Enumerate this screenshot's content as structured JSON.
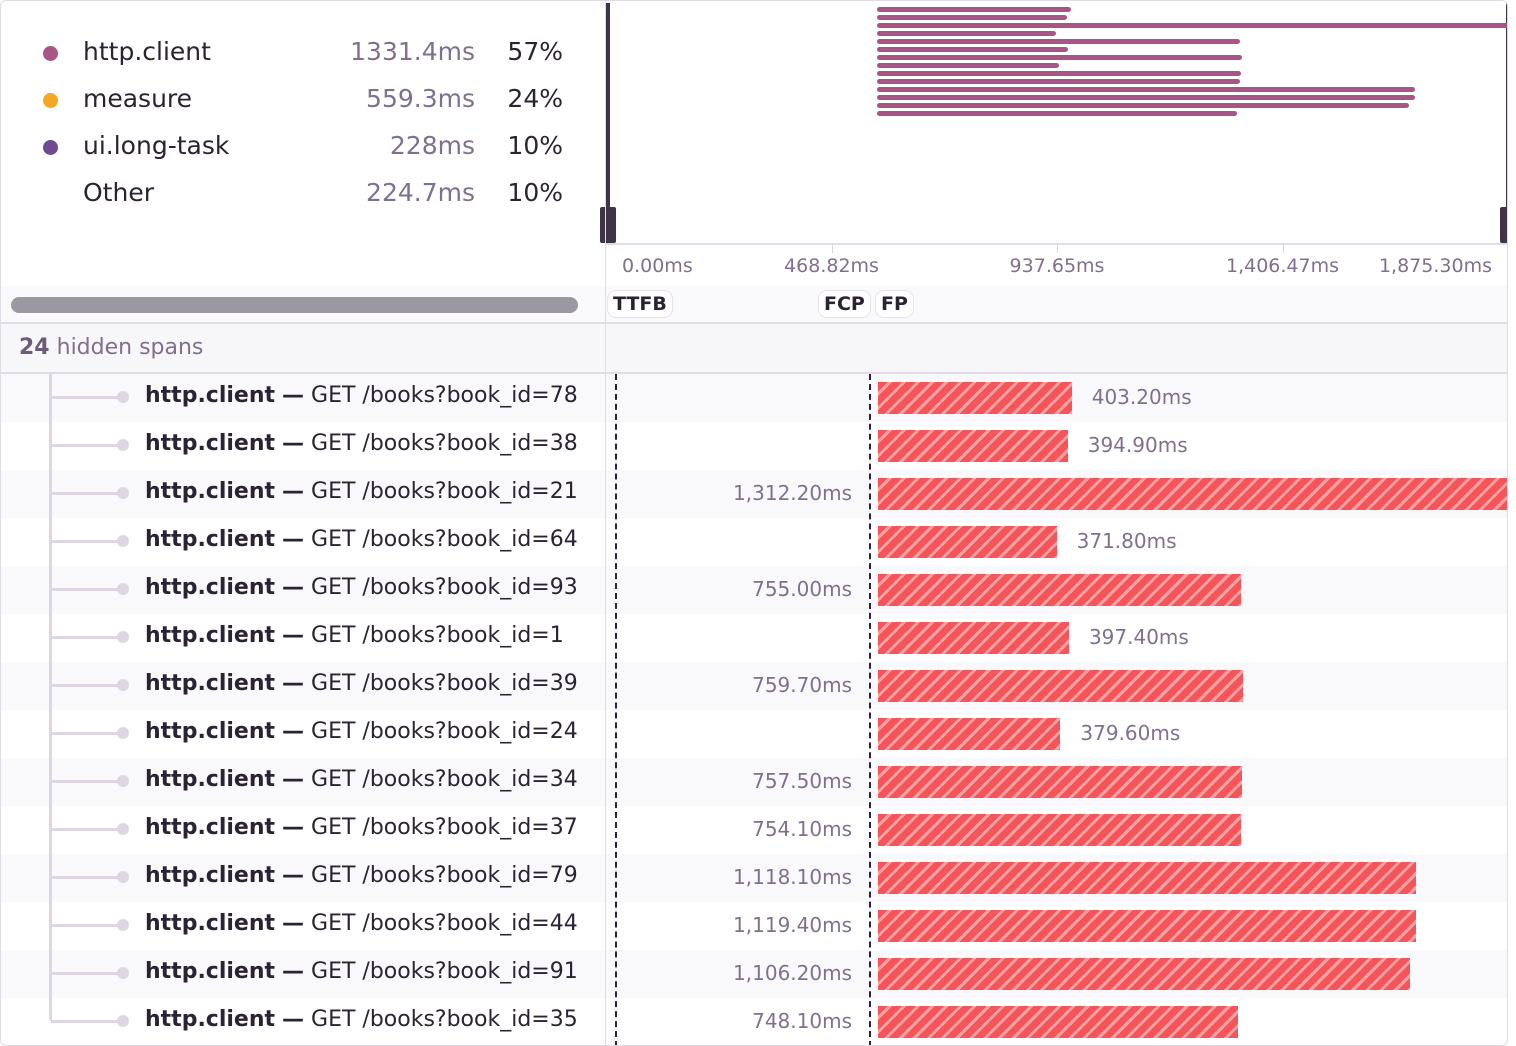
{
  "legend": [
    {
      "name": "http.client",
      "duration": "1331.4ms",
      "percent": "57%",
      "color": "#a85585"
    },
    {
      "name": "measure",
      "duration": "559.3ms",
      "percent": "24%",
      "color": "#f5a623"
    },
    {
      "name": "ui.long-task",
      "duration": "228ms",
      "percent": "10%",
      "color": "#6f4a8e"
    },
    {
      "name": "Other",
      "duration": "224.7ms",
      "percent": "10%",
      "color": ""
    }
  ],
  "axis": {
    "ticks": [
      {
        "label": "0.00ms",
        "value": 0
      },
      {
        "label": "468.82ms",
        "value": 468.82
      },
      {
        "label": "937.65ms",
        "value": 937.65
      },
      {
        "label": "1,406.47ms",
        "value": 1406.47
      },
      {
        "label": "1,875.30ms",
        "value": 1875.3
      }
    ]
  },
  "markers": [
    {
      "label": "TTFB",
      "value": 21
    },
    {
      "label": "FCP",
      "value": 548
    },
    {
      "label": "FP",
      "value": 560
    }
  ],
  "hidden_spans": {
    "count": "24",
    "label": "hidden spans"
  },
  "span_start_ms": 563,
  "colors": {
    "bar": "#f55459",
    "minimap_bar": "#a85585"
  },
  "spans": [
    {
      "op": "http.client",
      "sep": "—",
      "desc": "GET /books?book_id=78",
      "duration_label": "403.20ms",
      "duration": 403.2
    },
    {
      "op": "http.client",
      "sep": "—",
      "desc": "GET /books?book_id=38",
      "duration_label": "394.90ms",
      "duration": 394.9
    },
    {
      "op": "http.client",
      "sep": "—",
      "desc": "GET /books?book_id=21",
      "duration_label": "1,312.20ms",
      "duration": 1312.2
    },
    {
      "op": "http.client",
      "sep": "—",
      "desc": "GET /books?book_id=64",
      "duration_label": "371.80ms",
      "duration": 371.8
    },
    {
      "op": "http.client",
      "sep": "—",
      "desc": "GET /books?book_id=93",
      "duration_label": "755.00ms",
      "duration": 755.0
    },
    {
      "op": "http.client",
      "sep": "—",
      "desc": "GET /books?book_id=1",
      "duration_label": "397.40ms",
      "duration": 397.4
    },
    {
      "op": "http.client",
      "sep": "—",
      "desc": "GET /books?book_id=39",
      "duration_label": "759.70ms",
      "duration": 759.7
    },
    {
      "op": "http.client",
      "sep": "—",
      "desc": "GET /books?book_id=24",
      "duration_label": "379.60ms",
      "duration": 379.6
    },
    {
      "op": "http.client",
      "sep": "—",
      "desc": "GET /books?book_id=34",
      "duration_label": "757.50ms",
      "duration": 757.5
    },
    {
      "op": "http.client",
      "sep": "—",
      "desc": "GET /books?book_id=37",
      "duration_label": "754.10ms",
      "duration": 754.1
    },
    {
      "op": "http.client",
      "sep": "—",
      "desc": "GET /books?book_id=79",
      "duration_label": "1,118.10ms",
      "duration": 1118.1
    },
    {
      "op": "http.client",
      "sep": "—",
      "desc": "GET /books?book_id=44",
      "duration_label": "1,119.40ms",
      "duration": 1119.4
    },
    {
      "op": "http.client",
      "sep": "—",
      "desc": "GET /books?book_id=91",
      "duration_label": "1,106.20ms",
      "duration": 1106.2
    },
    {
      "op": "http.client",
      "sep": "—",
      "desc": "GET /books?book_id=35",
      "duration_label": "748.10ms",
      "duration": 748.1
    }
  ]
}
